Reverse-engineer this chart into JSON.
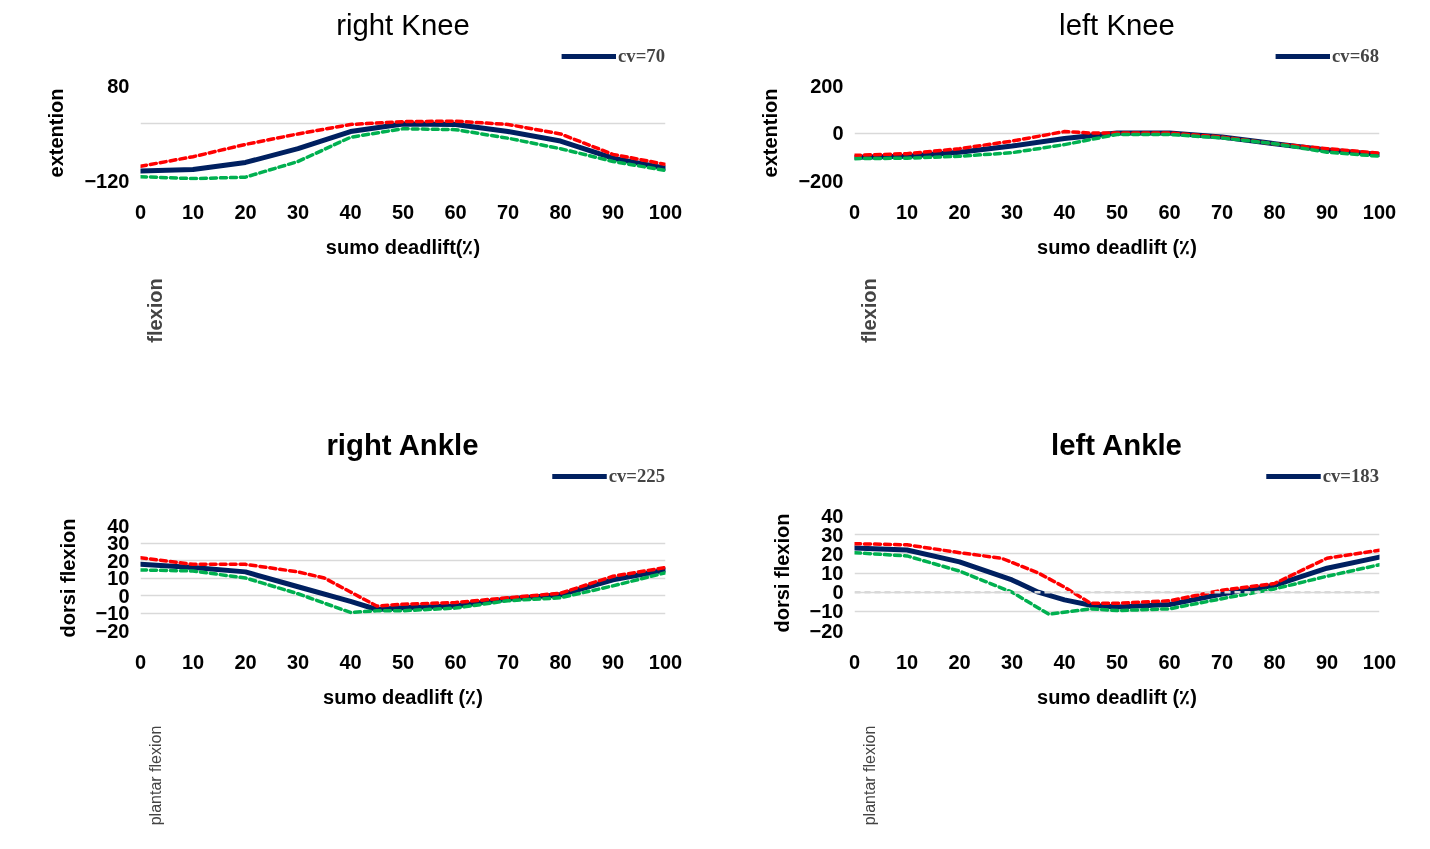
{
  "chart_data": [
    {
      "type": "line",
      "title": "right Knee",
      "xlabel": "sumo deadlift(٪)",
      "ylabel": "extention",
      "annotations": [
        "flexion"
      ],
      "xlim": [
        0,
        100
      ],
      "xticks": [
        0,
        10,
        20,
        30,
        40,
        50,
        60,
        70,
        80,
        90,
        100
      ],
      "ylim": [
        -120,
        80
      ],
      "yticks": [
        80,
        {
          "value": 0,
          "label": null
        },
        -120
      ],
      "grid": "y",
      "legend": "top right",
      "series": [
        {
          "name": "cv=70",
          "color": "#002060",
          "line_style": "solid",
          "x": [
            0,
            10,
            20,
            30,
            40,
            50,
            60,
            70,
            80,
            90,
            100
          ],
          "values": [
            -100,
            -97,
            -82,
            -53,
            -17,
            -1,
            -2,
            -17,
            -37,
            -73,
            -94
          ]
        },
        {
          "color": "#ff0000",
          "line_style": "dashed",
          "x": [
            0,
            10,
            20,
            30,
            40,
            50,
            60,
            70,
            80,
            90,
            100
          ],
          "values": [
            -90,
            -70,
            -44,
            -22,
            -2,
            4,
            5,
            -2,
            -22,
            -65,
            -86
          ]
        },
        {
          "color": "#00b050",
          "line_style": "dashed",
          "x": [
            0,
            10,
            20,
            30,
            40,
            50,
            60,
            70,
            80,
            90,
            100
          ],
          "values": [
            -112,
            -116,
            -113,
            -80,
            -29,
            -11,
            -13,
            -31,
            -53,
            -80,
            -99
          ]
        }
      ]
    },
    {
      "type": "line",
      "title": "left Knee",
      "xlabel": "sumo deadlift (٪)",
      "ylabel": "extention",
      "annotations": [
        "flexion"
      ],
      "xlim": [
        0,
        100
      ],
      "xticks": [
        0,
        10,
        20,
        30,
        40,
        50,
        60,
        70,
        80,
        90,
        100
      ],
      "ylim": [
        -200,
        200
      ],
      "yticks": [
        200,
        0,
        -200
      ],
      "grid": "y",
      "legend": "top right",
      "series": [
        {
          "name": "cv=68",
          "color": "#002060",
          "line_style": "solid",
          "x": [
            0,
            10,
            20,
            30,
            40,
            50,
            60,
            70,
            80,
            90,
            100
          ],
          "values": [
            -102,
            -98,
            -81,
            -55,
            -23,
            0,
            0,
            -17,
            -45,
            -72,
            -91
          ]
        },
        {
          "color": "#ff0000",
          "line_style": "dashed",
          "x": [
            0,
            10,
            20,
            30,
            40,
            45,
            50,
            60,
            70,
            80,
            90,
            100
          ],
          "values": [
            -94,
            -87,
            -66,
            -34,
            6,
            0,
            0,
            0,
            -17,
            -45,
            -66,
            -85
          ]
        },
        {
          "color": "#00b050",
          "line_style": "dashed",
          "x": [
            0,
            10,
            20,
            30,
            40,
            50,
            60,
            70,
            80,
            90,
            100
          ],
          "values": [
            -108,
            -106,
            -98,
            -83,
            -49,
            -6,
            -6,
            -21,
            -45,
            -81,
            -98
          ]
        }
      ]
    },
    {
      "type": "line",
      "title": "right Ankle",
      "xlabel": "sumo deadlift (٪)",
      "ylabel": "dorsi flexion",
      "annotations": [
        "plantar flexion"
      ],
      "xlim": [
        0,
        100
      ],
      "xticks": [
        0,
        10,
        20,
        30,
        40,
        50,
        60,
        70,
        80,
        90,
        100
      ],
      "ylim": [
        -20,
        40
      ],
      "yticks": [
        40,
        30,
        20,
        10,
        0,
        -10,
        -20
      ],
      "grid": "y",
      "legend": "top right",
      "series": [
        {
          "name": "cv=225",
          "color": "#002060",
          "line_style": "solid",
          "x": [
            0,
            10,
            20,
            30,
            40,
            45,
            50,
            60,
            70,
            80,
            90,
            100
          ],
          "values": [
            17.8,
            16,
            13.5,
            5,
            -3.4,
            -8,
            -7,
            -6,
            -2,
            0.4,
            9,
            14.6
          ]
        },
        {
          "color": "#ff0000",
          "line_style": "dashed",
          "x": [
            0,
            10,
            20,
            30,
            35,
            40,
            45,
            50,
            60,
            70,
            80,
            90,
            100
          ],
          "values": [
            21.6,
            17.8,
            17.8,
            13.5,
            10,
            2,
            -6,
            -5,
            -4,
            -1.3,
            1.3,
            11,
            16
          ]
        },
        {
          "color": "#00b050",
          "line_style": "dashed",
          "x": [
            0,
            10,
            20,
            30,
            40,
            45,
            50,
            60,
            70,
            80,
            90,
            100
          ],
          "values": [
            14.6,
            14,
            10,
            1,
            -9.7,
            -8.7,
            -8.7,
            -7.2,
            -3,
            -1.3,
            5.5,
            13
          ]
        }
      ]
    },
    {
      "type": "line",
      "title": "left Ankle",
      "xlabel": "sumo deadlift (٪)",
      "ylabel": "dorsi flexion",
      "annotations": [
        "plantar flexion"
      ],
      "xlim": [
        0,
        100
      ],
      "xticks": [
        0,
        10,
        20,
        30,
        40,
        50,
        60,
        70,
        80,
        90,
        100
      ],
      "ylim": [
        -20,
        40
      ],
      "yticks": [
        40,
        30,
        20,
        10,
        0,
        -10,
        -20
      ],
      "grid": "y",
      "legend": "top right",
      "ref_lines": [
        {
          "axis": "y",
          "value": 0,
          "label": null,
          "color": "#d9d9d9",
          "line_style": "dashed"
        }
      ],
      "series": [
        {
          "name": "cv=183",
          "color": "#002060",
          "line_style": "solid",
          "x": [
            0,
            10,
            20,
            30,
            35,
            40,
            45,
            50,
            60,
            70,
            80,
            90,
            100
          ],
          "values": [
            23,
            22,
            15.8,
            6.4,
            0,
            -4,
            -6.8,
            -7.7,
            -6.4,
            -1,
            3.6,
            12.5,
            18.3
          ]
        },
        {
          "color": "#ff0000",
          "line_style": "dashed",
          "x": [
            0,
            10,
            20,
            28,
            35,
            40,
            45,
            50,
            60,
            70,
            80,
            90,
            100
          ],
          "values": [
            25.3,
            24.7,
            20.6,
            17.7,
            10,
            2.6,
            -5.8,
            -5.8,
            -4.5,
            1,
            4.5,
            17.7,
            21.9
          ]
        },
        {
          "color": "#00b050",
          "line_style": "dashed",
          "x": [
            0,
            10,
            20,
            30,
            37,
            45,
            50,
            60,
            70,
            80,
            90,
            100
          ],
          "values": [
            20.6,
            18.9,
            11,
            0,
            -11.5,
            -8.7,
            -9.6,
            -8.7,
            -3.4,
            1.7,
            8.3,
            14.3
          ]
        }
      ]
    }
  ]
}
